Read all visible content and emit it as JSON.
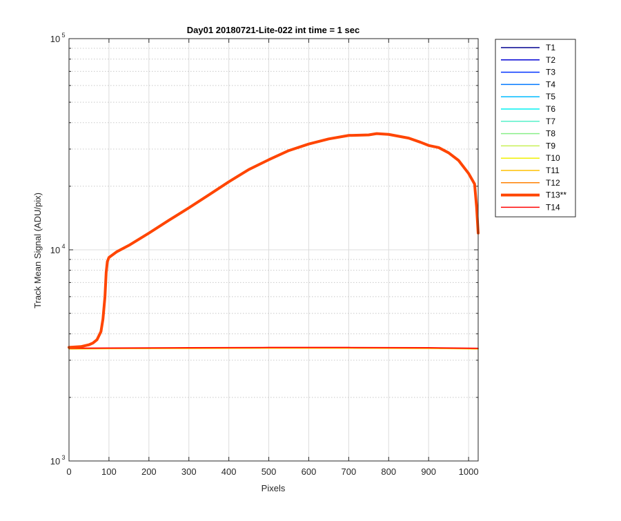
{
  "chart_data": {
    "type": "line",
    "title": "Day01 20180721-Lite-022 int time = 1 sec",
    "xlabel": "Pixels",
    "ylabel": "Track Mean Signal (ADU/pix)",
    "xlim": [
      0,
      1024
    ],
    "ylim": [
      1000,
      100000
    ],
    "yscale": "log",
    "grid": true,
    "legend_position": "outside-top-right",
    "x_ticks": [
      0,
      100,
      200,
      300,
      400,
      500,
      600,
      700,
      800,
      900,
      1000
    ],
    "y_ticks": [
      {
        "value": 1000,
        "base": "10",
        "exp": "3"
      },
      {
        "value": 10000,
        "base": "10",
        "exp": "4"
      },
      {
        "value": 100000,
        "base": "10",
        "exp": "5"
      }
    ],
    "series": [
      {
        "name": "T1",
        "color": "#00008F",
        "width": 1.5,
        "x": [
          0,
          100,
          300,
          500,
          700,
          900,
          1024
        ],
        "values": [
          3400,
          3410,
          3420,
          3430,
          3430,
          3420,
          3400
        ]
      },
      {
        "name": "T2",
        "color": "#0000D4",
        "width": 1.5,
        "x": [
          0,
          100,
          300,
          500,
          700,
          900,
          1024
        ],
        "values": [
          3400,
          3410,
          3420,
          3430,
          3430,
          3420,
          3400
        ]
      },
      {
        "name": "T3",
        "color": "#0033FF",
        "width": 1.5,
        "x": [
          0,
          100,
          300,
          500,
          700,
          900,
          1024
        ],
        "values": [
          3400,
          3410,
          3420,
          3430,
          3430,
          3420,
          3400
        ]
      },
      {
        "name": "T4",
        "color": "#0077FF",
        "width": 1.5,
        "x": [
          0,
          100,
          300,
          500,
          700,
          900,
          1024
        ],
        "values": [
          3400,
          3410,
          3420,
          3430,
          3430,
          3420,
          3400
        ]
      },
      {
        "name": "T5",
        "color": "#00BBFF",
        "width": 1.5,
        "x": [
          0,
          100,
          300,
          500,
          700,
          900,
          1024
        ],
        "values": [
          3400,
          3410,
          3420,
          3430,
          3430,
          3420,
          3400
        ]
      },
      {
        "name": "T6",
        "color": "#00F0F0",
        "width": 1.5,
        "x": [
          0,
          100,
          300,
          500,
          700,
          900,
          1024
        ],
        "values": [
          3400,
          3410,
          3420,
          3430,
          3430,
          3420,
          3400
        ]
      },
      {
        "name": "T7",
        "color": "#55F0C8",
        "width": 1.5,
        "x": [
          0,
          100,
          300,
          500,
          700,
          900,
          1024
        ],
        "values": [
          3400,
          3410,
          3420,
          3430,
          3430,
          3420,
          3400
        ]
      },
      {
        "name": "T8",
        "color": "#88EE88",
        "width": 1.5,
        "x": [
          0,
          100,
          300,
          500,
          700,
          900,
          1024
        ],
        "values": [
          3400,
          3410,
          3420,
          3430,
          3430,
          3420,
          3400
        ]
      },
      {
        "name": "T9",
        "color": "#C8F055",
        "width": 1.5,
        "x": [
          0,
          100,
          300,
          500,
          700,
          900,
          1024
        ],
        "values": [
          3400,
          3410,
          3420,
          3430,
          3430,
          3420,
          3400
        ]
      },
      {
        "name": "T10",
        "color": "#F0F000",
        "width": 1.5,
        "x": [
          0,
          100,
          300,
          500,
          700,
          900,
          1024
        ],
        "values": [
          3390,
          3400,
          3410,
          3420,
          3420,
          3410,
          3390
        ]
      },
      {
        "name": "T11",
        "color": "#FFC000",
        "width": 1.5,
        "x": [
          0,
          100,
          300,
          500,
          700,
          900,
          1024
        ],
        "values": [
          3400,
          3410,
          3420,
          3430,
          3430,
          3420,
          3400
        ]
      },
      {
        "name": "T12",
        "color": "#FF8000",
        "width": 1.5,
        "x": [
          0,
          100,
          300,
          500,
          700,
          900,
          1024
        ],
        "values": [
          3400,
          3410,
          3420,
          3430,
          3430,
          3420,
          3400
        ]
      },
      {
        "name": "T13**",
        "color": "#FF4500",
        "width": 4,
        "x": [
          0,
          30,
          50,
          60,
          70,
          80,
          85,
          90,
          93,
          96,
          100,
          120,
          150,
          200,
          250,
          300,
          350,
          400,
          450,
          500,
          550,
          600,
          650,
          700,
          750,
          770,
          800,
          850,
          880,
          900,
          925,
          950,
          975,
          1000,
          1015,
          1020,
          1024
        ],
        "values": [
          3450,
          3480,
          3550,
          3620,
          3750,
          4100,
          4700,
          6000,
          7800,
          8800,
          9200,
          9800,
          10500,
          12000,
          13800,
          15800,
          18200,
          21000,
          24000,
          26700,
          29500,
          31700,
          33500,
          34800,
          35000,
          35500,
          35200,
          33800,
          32300,
          31200,
          30500,
          28800,
          26500,
          23000,
          20500,
          16000,
          12000
        ]
      },
      {
        "name": "T14",
        "color": "#FF0000",
        "width": 1.5,
        "x": [
          0,
          100,
          300,
          500,
          700,
          900,
          1024
        ],
        "values": [
          3420,
          3430,
          3440,
          3450,
          3450,
          3440,
          3420
        ]
      }
    ]
  }
}
